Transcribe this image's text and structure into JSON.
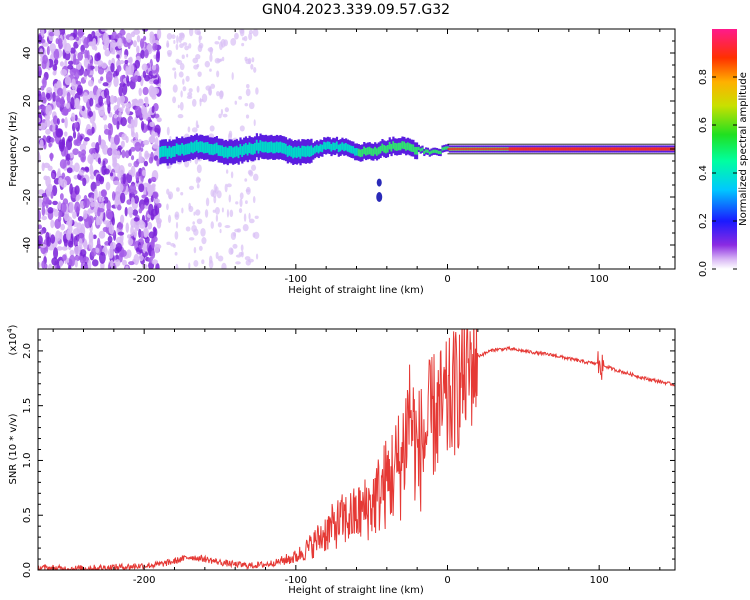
{
  "title": "GN04.2023.339.09.57.G32",
  "chart_data": [
    {
      "type": "heatmap",
      "xlabel": "Height of straight line (km)",
      "ylabel": "Frequency (Hz)",
      "xlim": [
        -270,
        150
      ],
      "ylim": [
        -50,
        50
      ],
      "xticks": [
        -200,
        -100,
        0,
        100
      ],
      "yticks": [
        -40,
        -20,
        0,
        20,
        40
      ],
      "colorbar": {
        "label": "Normalized spectral amplitude",
        "range": [
          0,
          1
        ],
        "ticks": [
          "0.0",
          "0.2",
          "0.4",
          "0.6",
          "0.8"
        ]
      },
      "features": {
        "noise_region_x": [
          -270,
          -190
        ],
        "faint_noise_region_x": [
          -185,
          -125
        ],
        "signal_band": {
          "x_start": -190,
          "x_end": 150,
          "center_hz": 0,
          "half_width_hz": 4
        },
        "spike": {
          "x": -45,
          "y": -20
        }
      }
    },
    {
      "type": "line",
      "xlabel": "Height of straight line (km)",
      "ylabel": "SNR (10 * v/v)",
      "y_scale_label": "(x10",
      "y_scale_exp": "4",
      "xlim": [
        -270,
        150
      ],
      "ylim": [
        0,
        2.2
      ],
      "xticks": [
        -200,
        -100,
        0,
        100
      ],
      "yticks": [
        "0.0",
        "0.5",
        "1.0",
        "1.5",
        "2.0"
      ],
      "series": [
        {
          "color": "#e53935",
          "x": [
            -270,
            -250,
            -230,
            -210,
            -190,
            -180,
            -170,
            -160,
            -150,
            -140,
            -130,
            -120,
            -110,
            -100,
            -90,
            -80,
            -70,
            -60,
            -50,
            -40,
            -30,
            -25,
            -20,
            -15,
            -10,
            0,
            10,
            20,
            30,
            40,
            50,
            60,
            70,
            80,
            90,
            100,
            110,
            120,
            130,
            140,
            150
          ],
          "values": [
            0.02,
            0.01,
            0.02,
            0.03,
            0.05,
            0.08,
            0.12,
            0.1,
            0.07,
            0.05,
            0.04,
            0.05,
            0.08,
            0.12,
            0.22,
            0.35,
            0.45,
            0.5,
            0.6,
            0.8,
            1.0,
            1.5,
            1.05,
            1.2,
            1.4,
            1.5,
            1.75,
            1.95,
            2.01,
            2.02,
            2.0,
            1.98,
            1.96,
            1.93,
            1.9,
            1.88,
            1.83,
            1.79,
            1.75,
            1.72,
            1.69
          ]
        }
      ]
    }
  ]
}
